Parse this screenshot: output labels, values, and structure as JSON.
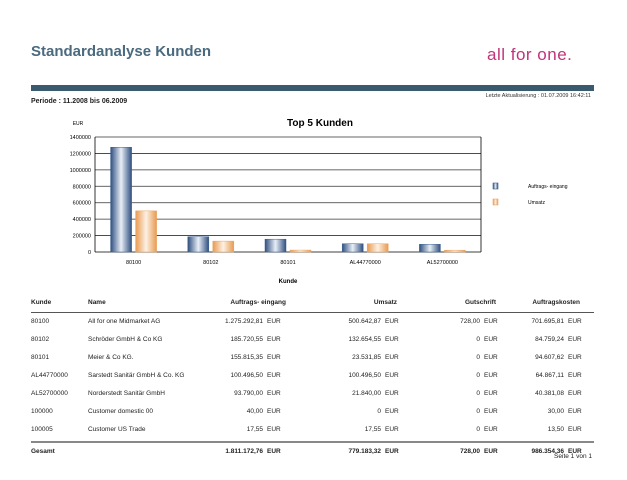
{
  "header": {
    "title": "Standardanalyse Kunden",
    "logo": "all for one.",
    "period": "Periode : 11.2008  bis  06.2009",
    "updated": "Letzte Aktualisierung : 01.07.2009  16:42:11"
  },
  "chart_data": {
    "type": "bar",
    "title": "Top 5 Kunden",
    "ylabel": "EUR",
    "xlabel": "Kunde",
    "ylim": [
      0,
      1400000
    ],
    "yticks": [
      "0",
      "200000",
      "400000",
      "600000",
      "800000",
      "1000000",
      "1200000",
      "1400000"
    ],
    "categories": [
      "80100",
      "80102",
      "80101",
      "AL44770000",
      "AL52700000"
    ],
    "series": [
      {
        "name": "Auftrags- eingang",
        "color": "#3d5f8f",
        "values": [
          1275292.81,
          185720.55,
          155815.35,
          100496.5,
          93790
        ]
      },
      {
        "name": "Umsatz",
        "color": "#e8a462",
        "values": [
          500642.87,
          132654.55,
          23531.85,
          100496.5,
          21840
        ]
      }
    ],
    "legend": "right",
    "grid": true
  },
  "table": {
    "headers": [
      "Kunde",
      "Name",
      "Auftrags- eingang",
      "Umsatz",
      "Gutschrift",
      "Auftragskosten"
    ],
    "currency": "EUR",
    "rows": [
      [
        "80100",
        "All for one Midmarket AG",
        "1.275.292,81",
        "500.642,87",
        "728,00",
        "701.695,81"
      ],
      [
        "80102",
        "Schröder GmbH & Co KG",
        "185.720,55",
        "132.654,55",
        "0",
        "84.759,24"
      ],
      [
        "80101",
        "Meier & Co KG.",
        "155.815,35",
        "23.531,85",
        "0",
        "94.607,62"
      ],
      [
        "AL44770000",
        "Sarstedt Sanitär GmbH & Co. KG",
        "100.496,50",
        "100.496,50",
        "0",
        "64.867,11"
      ],
      [
        "AL52700000",
        "Norderstedt Sanitär GmbH",
        "93.790,00",
        "21.840,00",
        "0",
        "40.381,08"
      ],
      [
        "100000",
        "Customer domestic 00",
        "40,00",
        "0",
        "0",
        "30,00"
      ],
      [
        "100005",
        "Customer US Trade",
        "17,55",
        "17,55",
        "0",
        "13,50"
      ]
    ],
    "total": [
      "Gesamt",
      "1.811.172,76",
      "779.183,32",
      "728,00",
      "986.354,36"
    ]
  },
  "footer": {
    "page": "Seite 1 von 1"
  }
}
